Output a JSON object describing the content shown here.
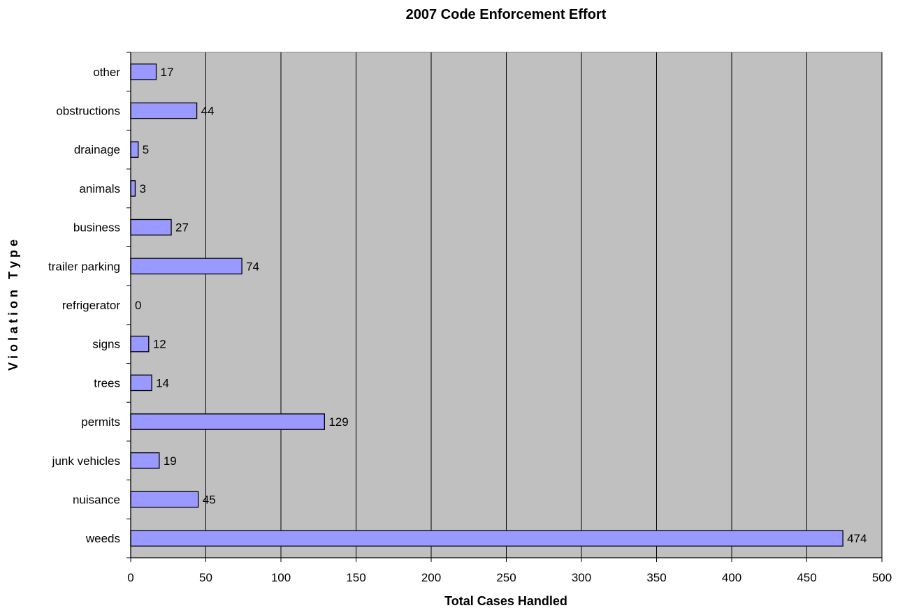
{
  "chart_data": {
    "type": "bar",
    "orientation": "horizontal",
    "title": "2007 Code Enforcement Effort",
    "xlabel": "Total Cases Handled",
    "ylabel": "V i o l a t i o n   T y p e",
    "categories": [
      "weeds",
      "nuisance",
      "junk vehicles",
      "permits",
      "trees",
      "signs",
      "refrigerator",
      "trailer parking",
      "business",
      "animals",
      "drainage",
      "obstructions",
      "other"
    ],
    "values": [
      474,
      45,
      19,
      129,
      14,
      12,
      0,
      74,
      27,
      3,
      5,
      44,
      17
    ],
    "data_labels": [
      "474",
      "45",
      "19",
      "129",
      "14",
      "12",
      "0",
      "74",
      "27",
      "3",
      "5",
      "44",
      "17"
    ],
    "xlim": [
      0,
      500
    ],
    "xticks": [
      0,
      50,
      100,
      150,
      200,
      250,
      300,
      350,
      400,
      450,
      500
    ],
    "xtick_labels": [
      "0",
      "50",
      "100",
      "150",
      "200",
      "250",
      "300",
      "350",
      "400",
      "450",
      "500"
    ],
    "grid": "vertical",
    "legend": "none",
    "colors": {
      "bar_fill": "#9999ff",
      "bar_stroke": "#000000",
      "plot_background": "#c0c0c0",
      "gridline": "#000000",
      "text": "#000000"
    }
  }
}
